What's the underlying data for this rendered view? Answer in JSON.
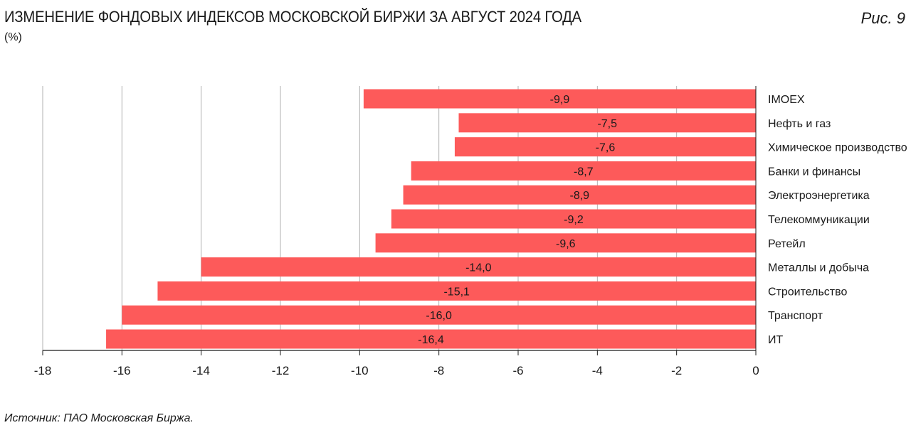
{
  "header": {
    "title": "ИЗМЕНЕНИЕ ФОНДОВЫХ ИНДЕКСОВ МОСКОВСКОЙ БИРЖИ ЗА АВГУСТ 2024 ГОДА",
    "subtitle": "(%)",
    "figure_label": "Рис. 9"
  },
  "footer": {
    "source": "Источник: ПАО Московская Биржа."
  },
  "colors": {
    "bar": "#fd5a5a",
    "grid": "#b0b0b0",
    "axis": "#1a1a1a"
  },
  "chart_data": {
    "type": "bar",
    "orientation": "horizontal",
    "title": "ИЗМЕНЕНИЕ ФОНДОВЫХ ИНДЕКСОВ МОСКОВСКОЙ БИРЖИ ЗА АВГУСТ 2024 ГОДА",
    "ylabel": "(%)",
    "categories": [
      "IMOEX",
      "Нефть и газ",
      "Химическое производство",
      "Банки и финансы",
      "Электроэнергетика",
      "Телекоммуникации",
      "Ретейл",
      "Металлы и добыча",
      "Строительство",
      "Транспорт",
      "ИТ"
    ],
    "values": [
      -9.9,
      -7.5,
      -7.6,
      -8.7,
      -8.9,
      -9.2,
      -9.6,
      -14.0,
      -15.1,
      -16.0,
      -16.4
    ],
    "value_labels": [
      "-9,9",
      "-7,5",
      "-7,6",
      "-8,7",
      "-8,9",
      "-9,2",
      "-9,6",
      "-14,0",
      "-15,1",
      "-16,0",
      "-16,4"
    ],
    "xlim": [
      -18,
      0
    ],
    "xticks": [
      -18,
      -16,
      -14,
      -12,
      -10,
      -8,
      -6,
      -4,
      -2,
      0
    ],
    "grid": true,
    "category_axis_side": "right"
  }
}
